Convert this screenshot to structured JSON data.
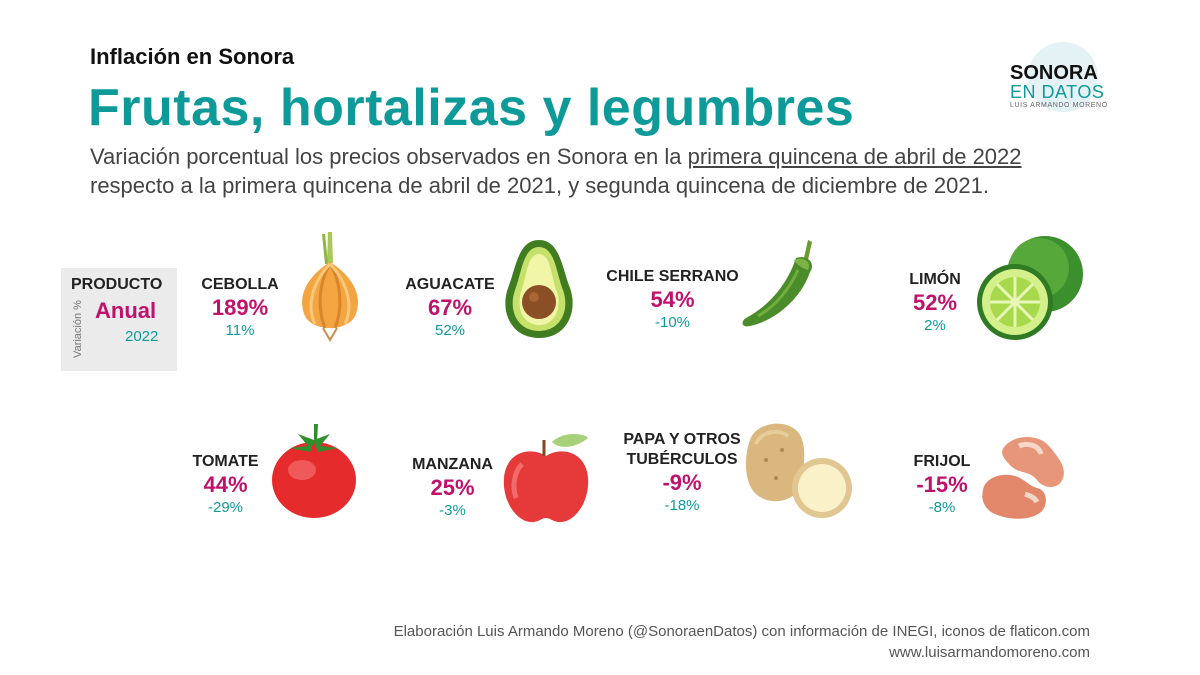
{
  "kicker": "Inflación en Sonora",
  "title": "Frutas, hortalizas y legumbres",
  "subtitle": {
    "part1": "Variación porcentual los precios observados en Sonora en la ",
    "highlight": "primera quincena de abril de 2022",
    "part2": " respecto a la primera quincena de abril de 2021, y segunda quincena de diciembre de 2021."
  },
  "logo": {
    "line1": "SONORA",
    "line2": "EN DATOS",
    "line3": "LUIS ARMANDO MORENO"
  },
  "legend": {
    "producto": "PRODUCTO",
    "anual": "Anual",
    "year": "2022",
    "vertical": "Variación %"
  },
  "items": [
    {
      "name": "CEBOLLA",
      "anual": "189%",
      "y2022": "11%",
      "icon": "onion-icon"
    },
    {
      "name": "AGUACATE",
      "anual": "67%",
      "y2022": "52%",
      "icon": "avocado-icon"
    },
    {
      "name": "CHILE SERRANO",
      "anual": "54%",
      "y2022": "-10%",
      "icon": "chili-icon"
    },
    {
      "name": "LIMÓN",
      "anual": "52%",
      "y2022": "2%",
      "icon": "lime-icon"
    },
    {
      "name": "TOMATE",
      "anual": "44%",
      "y2022": "-29%",
      "icon": "tomato-icon"
    },
    {
      "name": "MANZANA",
      "anual": "25%",
      "y2022": "-3%",
      "icon": "apple-icon"
    },
    {
      "name1": "PAPA Y OTROS",
      "name2": "TUBÉRCULOS",
      "anual": "-9%",
      "y2022": "-18%",
      "icon": "potato-icon"
    },
    {
      "name": "FRIJOL",
      "anual": "-15%",
      "y2022": "-8%",
      "icon": "bean-icon"
    }
  ],
  "credits": {
    "line1": "Elaboración Luis Armando Moreno (@SonoraenDatos) con información de INEGI, iconos de flaticon.com",
    "line2": "www.luisarmandomoreno.com"
  },
  "colors": {
    "teal": "#0f9a9a",
    "magenta": "#c0116b"
  }
}
